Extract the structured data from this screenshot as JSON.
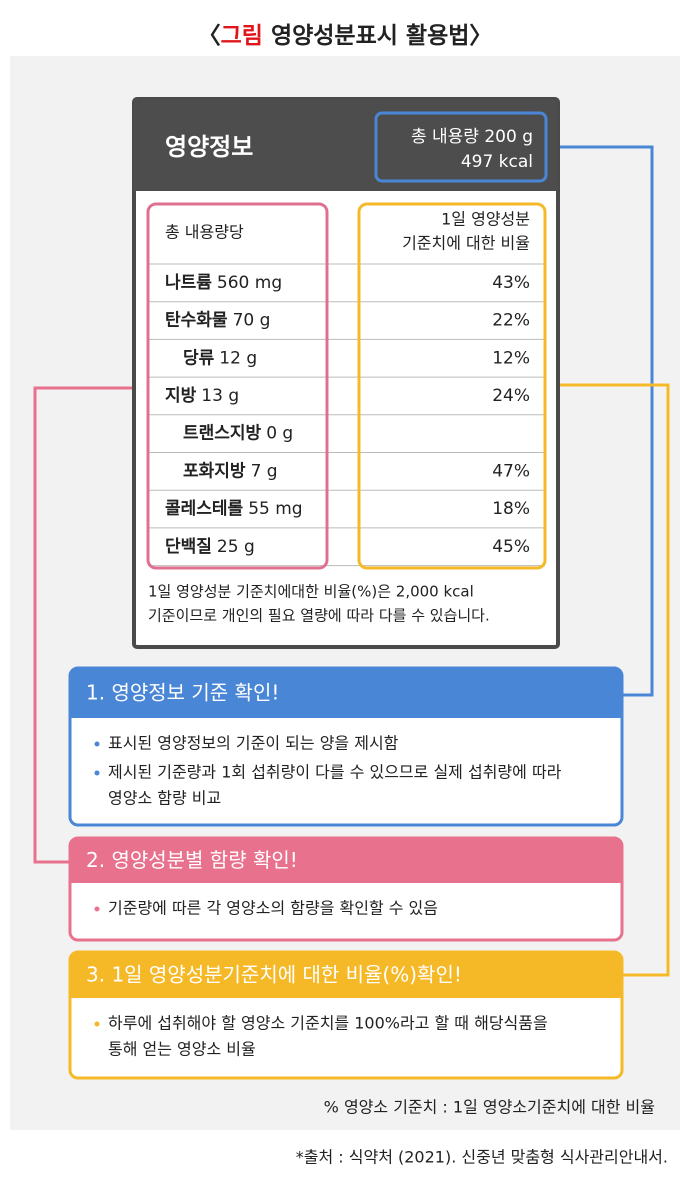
{
  "title": {
    "open": "〈",
    "label": "그림",
    "text": "영양성분표시 활용법",
    "close": "〉"
  },
  "label": {
    "heading": "영양정보",
    "total": "총 내용량 200 g",
    "kcal": "497 kcal",
    "col_left": "총 내용량당",
    "col_right": [
      "1일 영양성분",
      "기준치에 대한 비율"
    ],
    "rows": [
      {
        "name": "나트륨",
        "amount": "560 mg",
        "percent": "43%",
        "sub": false
      },
      {
        "name": "탄수화물",
        "amount": "70 g",
        "percent": "22%",
        "sub": false
      },
      {
        "name": "당류",
        "amount": "12 g",
        "percent": "12%",
        "sub": true
      },
      {
        "name": "지방",
        "amount": "13 g",
        "percent": "24%",
        "sub": false
      },
      {
        "name": "트랜스지방",
        "amount": "0 g",
        "percent": null,
        "sub": true
      },
      {
        "name": "포화지방",
        "amount": "7 g",
        "percent": "47%",
        "sub": true
      },
      {
        "name": "콜레스테롤",
        "amount": "55 mg",
        "percent": "18%",
        "sub": false
      },
      {
        "name": "단백질",
        "amount": "25 g",
        "percent": "45%",
        "sub": false
      }
    ],
    "footnote": [
      "1일 영양성분 기준치에대한 비율(%)은 2,000 kcal",
      "기준이므로 개인의 필요 열량에 따라 다를 수 있습니다."
    ]
  },
  "boxes": [
    {
      "title": "1. 영양정보 기준 확인!",
      "bullets": [
        [
          "표시된 영양정보의 기준이 되는 양을 제시함"
        ],
        [
          "제시된 기준량과 1회 섭취량이 다를 수 있으므로 실제 섭취량에 따라",
          "영양소 함량 비교"
        ]
      ]
    },
    {
      "title": "2. 영양성분별 함량 확인!",
      "bullets": [
        [
          "기준량에 따른 각 영양소의 함량을 확인할 수 있음"
        ]
      ]
    },
    {
      "title": "3. 1일 영양성분기준치에 대한 비율(%)확인!",
      "bullets": [
        [
          "하루에 섭취해야 할 영양소 기준치를 100%라고 할 때 해당식품을",
          "통해 얻는 영양소 비율"
        ]
      ]
    }
  ],
  "note": "% 영양소 기준치 : 1일 영양소기준치에 대한 비율",
  "source": "*출처 : 식약처 (2021). 신중년 맞춤형 식사관리안내서."
}
